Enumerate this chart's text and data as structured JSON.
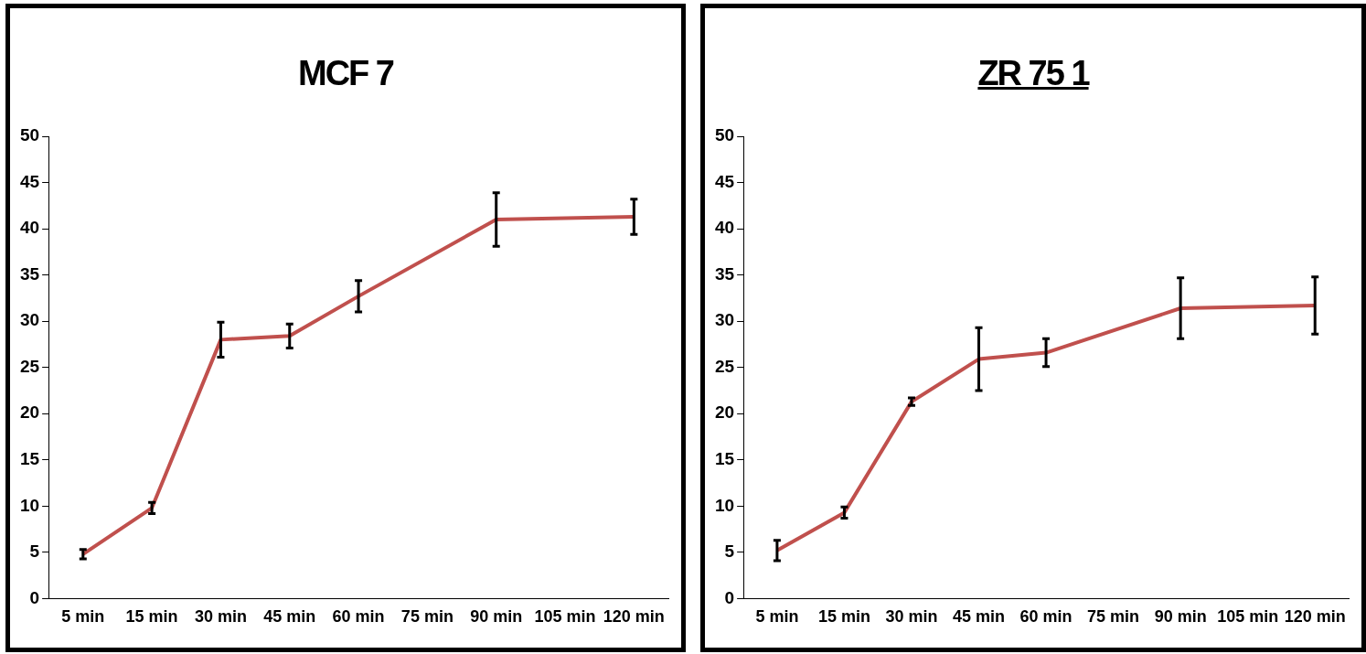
{
  "chart_data": [
    {
      "type": "line",
      "title": "MCF 7",
      "categories": [
        "5 min",
        "15 min",
        "30 min",
        "45 min",
        "60 min",
        "75 min",
        "90 min",
        "105 min",
        "120 min"
      ],
      "color": "#c0504d",
      "values": [
        4.8,
        9.8,
        28.0,
        28.4,
        32.7,
        null,
        41.0,
        null,
        41.3
      ],
      "errors": [
        0.5,
        0.6,
        1.9,
        1.3,
        1.7,
        null,
        2.9,
        null,
        1.9
      ],
      "ylim": [
        0,
        50
      ],
      "yticks": [
        0,
        5,
        10,
        15,
        20,
        25,
        30,
        35,
        40,
        45,
        50
      ]
    },
    {
      "type": "line",
      "title": "ZR 75 1",
      "categories": [
        "5 min",
        "15 min",
        "30 min",
        "45 min",
        "60 min",
        "75 min",
        "90 min",
        "105 min",
        "120 min"
      ],
      "color": "#c0504d",
      "values": [
        5.2,
        9.3,
        21.3,
        25.9,
        26.6,
        null,
        31.4,
        null,
        31.7
      ],
      "errors": [
        1.1,
        0.6,
        0.4,
        3.4,
        1.5,
        null,
        3.3,
        null,
        3.1
      ],
      "ylim": [
        0,
        50
      ],
      "yticks": [
        0,
        5,
        10,
        15,
        20,
        25,
        30,
        35,
        40,
        45,
        50
      ]
    }
  ]
}
